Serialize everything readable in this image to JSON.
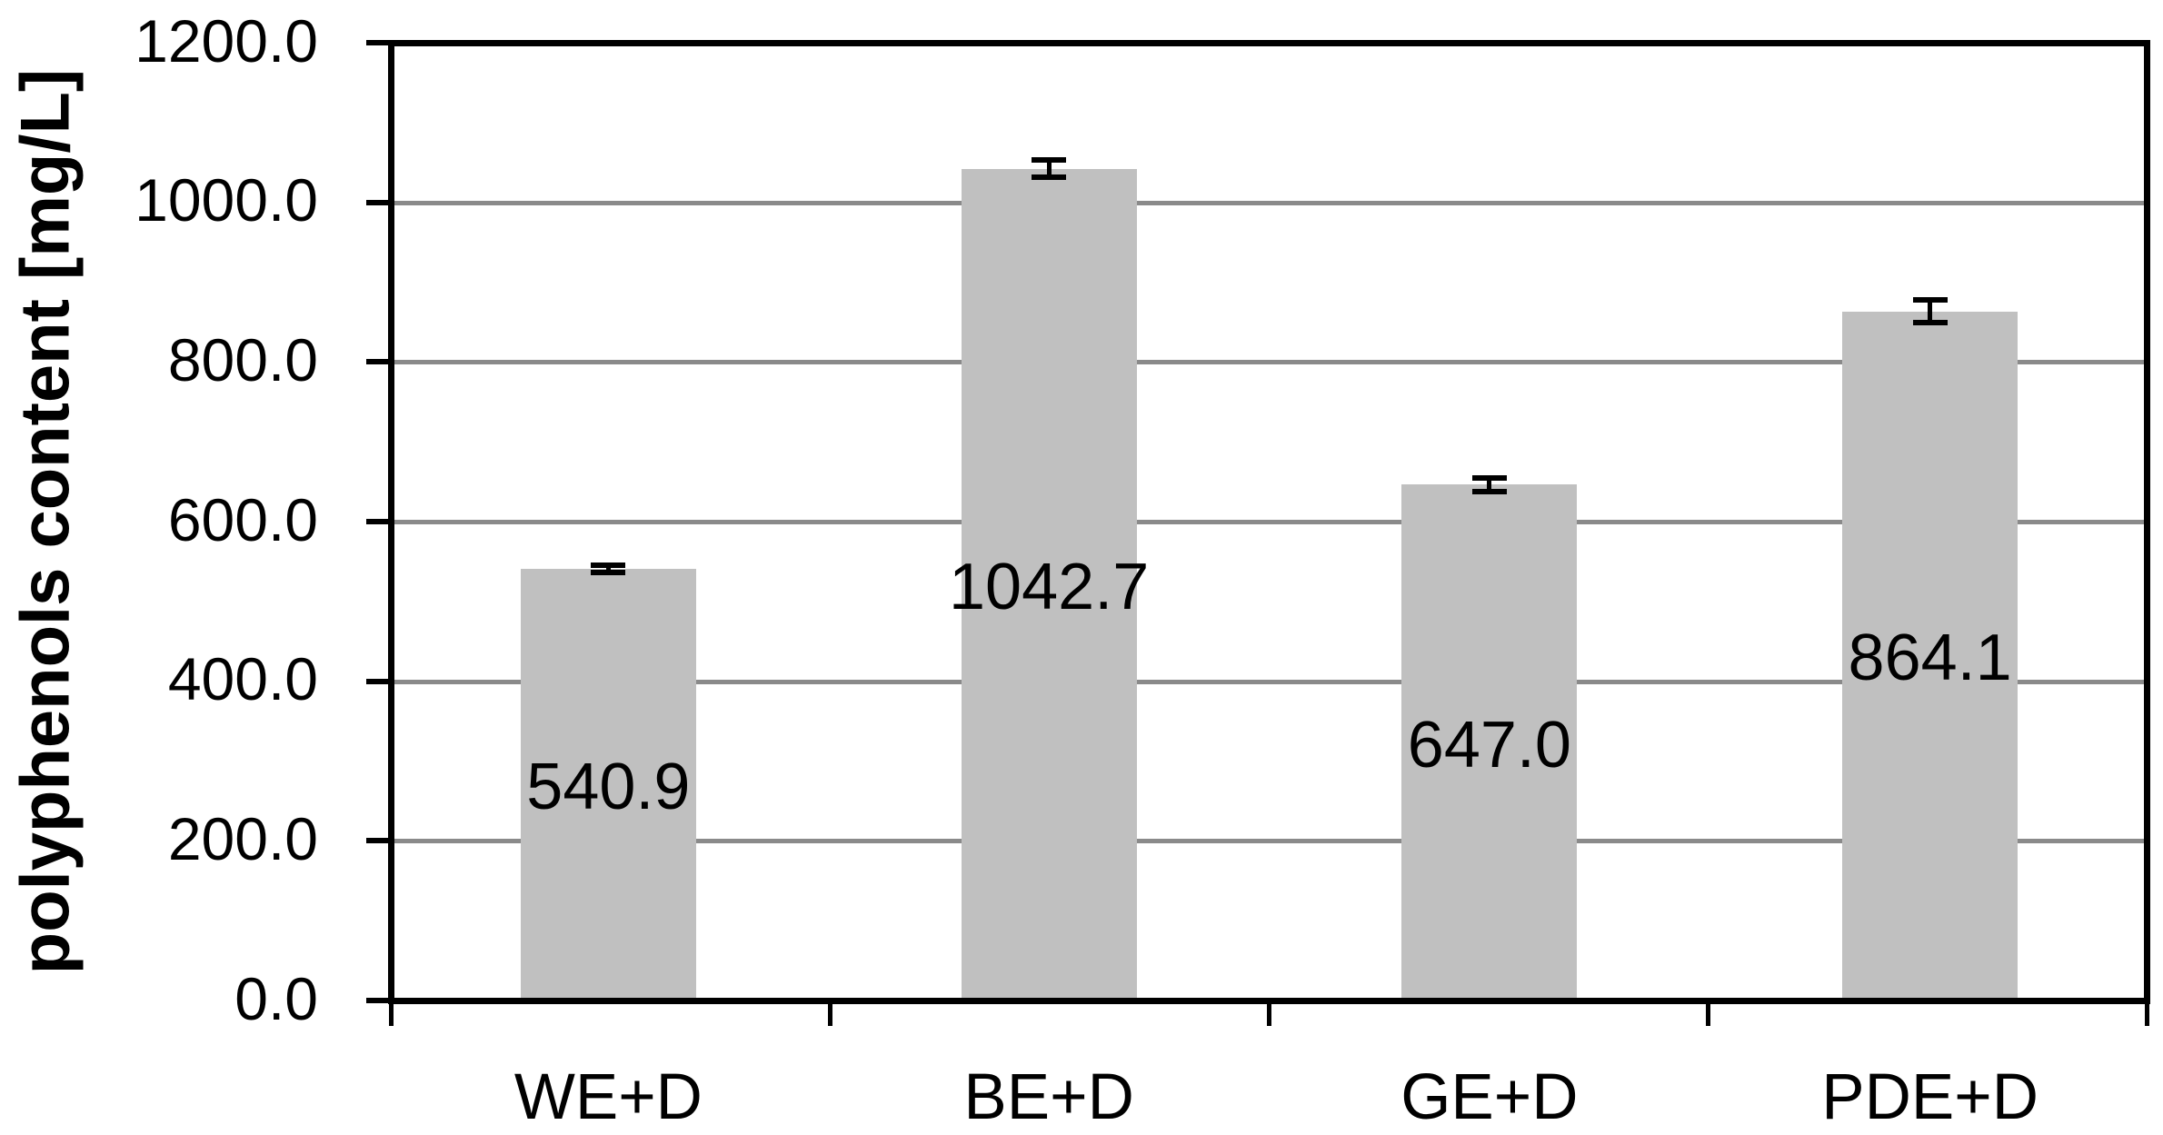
{
  "chart_data": {
    "type": "bar",
    "title": "",
    "ylabel": "polyphenols content [mg/L]",
    "xlabel": "",
    "categories": [
      "WE+D",
      "BE+D",
      "GE+D",
      "PDE+D"
    ],
    "values": [
      540.9,
      1042.7,
      647.0,
      864.1
    ],
    "data_labels": [
      "540.9",
      "1042.7",
      "647.0",
      "864.1"
    ],
    "error_bars_plus_minus": [
      4.5,
      10.5,
      8.5,
      14.0
    ],
    "y_tick_labels": [
      "1200.0",
      "1000.0",
      "800.0",
      "600.0",
      "400.0",
      "200.0",
      "0.0"
    ],
    "y_tick_values": [
      1200,
      1000,
      800,
      600,
      400,
      200,
      0
    ],
    "ylim": [
      0,
      1200
    ],
    "grid": true,
    "legend": "none",
    "data_label_position": "center-of-bar",
    "colors": {
      "bar_fill": "#C0C0C0",
      "gridline": "#8A8A8A",
      "axis": "#000000",
      "text": "#000000",
      "background": "#FFFFFF"
    }
  }
}
